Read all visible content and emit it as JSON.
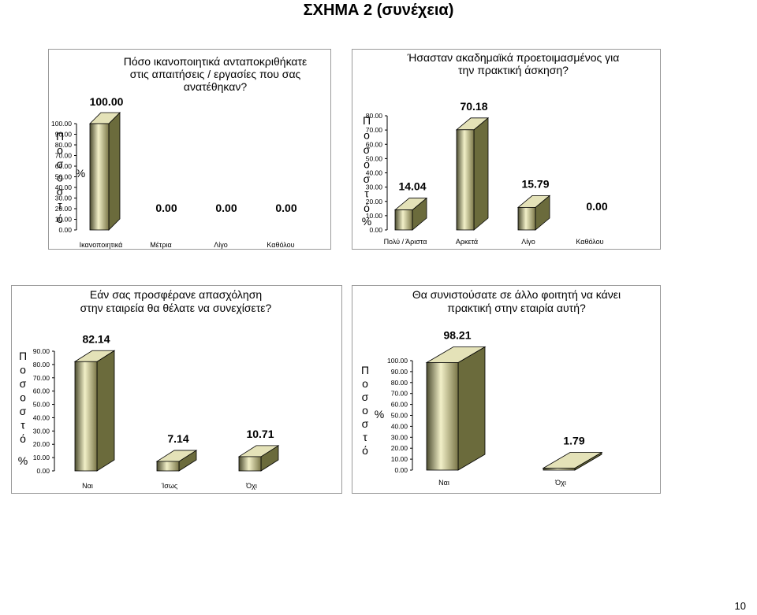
{
  "page_title": "ΣΧΗΜΑ 2 (συνέχεια)",
  "page_number": "10",
  "chart_data": [
    {
      "type": "bar",
      "title": "Πόσο ικανοποιητικά ανταποκριθήκατε στις απαιτήσεις / εργασίες που σας ανατέθηκαν?",
      "title_lines": [
        "Πόσο ικανοποιητικά ανταποκριθήκατε",
        "στις απαιτήσεις / εργασίες που σας",
        "ανατέθηκαν?"
      ],
      "ylabel": "Ποσοστό %",
      "ylabel_letters": [
        "Π",
        "ο",
        "σ",
        "ο",
        "σ",
        "τ",
        "ό"
      ],
      "ylabel_symbol": "%",
      "categories": [
        "Ικανοποιητικά",
        "Μέτρια",
        "Λίγο",
        "Καθόλου"
      ],
      "values": [
        100.0,
        0.0,
        0.0,
        0.0
      ],
      "value_labels": [
        "100.00",
        "0.00",
        "0.00",
        "0.00"
      ],
      "yticks": [
        "0.00",
        "10.00",
        "20.00",
        "30.00",
        "40.00",
        "50.00",
        "60.00",
        "70.00",
        "80.00",
        "90.00",
        "100.00"
      ],
      "ylim": [
        0,
        100
      ],
      "grid": false,
      "style": "3d-bar"
    },
    {
      "type": "bar",
      "title": "Ήσασταν ακαδημαϊκά προετοιμασμένος για την πρακτική άσκηση?",
      "title_lines": [
        "Ήσασταν ακαδημαϊκά προετοιμασμένος για",
        "την πρακτική άσκηση?"
      ],
      "ylabel": "Ποσοστό %",
      "ylabel_letters": [
        "Π",
        "ο",
        "σ",
        "ο",
        "σ",
        "τ",
        "ό"
      ],
      "ylabel_symbol": "%",
      "categories": [
        "Πολύ / Άριστα",
        "Αρκετά",
        "Λίγο",
        "Καθόλου"
      ],
      "values": [
        14.04,
        70.18,
        15.79,
        0.0
      ],
      "value_labels": [
        "14.04",
        "70.18",
        "15.79",
        "0.00"
      ],
      "yticks": [
        "0.00",
        "10.00",
        "20.00",
        "30.00",
        "40.00",
        "50.00",
        "60.00",
        "70.00",
        "80.00"
      ],
      "ylim": [
        0,
        80
      ],
      "grid": false,
      "style": "3d-bar"
    },
    {
      "type": "bar",
      "title": "Εάν σας προσφέρανε απασχόληση στην εταιρεία θα θέλατε να συνεχίσετε?",
      "title_lines": [
        "Εάν σας προσφέρανε απασχόληση",
        "στην εταιρεία θα θέλατε να συνεχίσετε?"
      ],
      "ylabel": "Ποσοστό %",
      "ylabel_letters": [
        "Π",
        "ο",
        "σ",
        "ο",
        "σ",
        "τ",
        "ό"
      ],
      "ylabel_symbol": "%",
      "categories": [
        "Ναι",
        "Ίσως",
        "Όχι"
      ],
      "values": [
        82.14,
        7.14,
        10.71
      ],
      "value_labels": [
        "82.14",
        "7.14",
        "10.71"
      ],
      "yticks": [
        "0.00",
        "10.00",
        "20.00",
        "30.00",
        "40.00",
        "50.00",
        "60.00",
        "70.00",
        "80.00",
        "90.00"
      ],
      "ylim": [
        0,
        90
      ],
      "grid": false,
      "style": "3d-bar"
    },
    {
      "type": "bar",
      "title": "Θα συνιστούσατε σε άλλο φοιτητή να κάνει πρακτική στην εταιρία αυτή?",
      "title_lines": [
        "Θα συνιστούσατε σε άλλο φοιτητή να κάνει",
        "πρακτική στην εταιρία αυτή?"
      ],
      "ylabel": "Ποσοστό %",
      "ylabel_letters": [
        "Π",
        "ο",
        "σ",
        "ο",
        "σ",
        "τ",
        "ό"
      ],
      "ylabel_symbol": "%",
      "categories": [
        "Ναι",
        "Όχι"
      ],
      "values": [
        98.21,
        1.79
      ],
      "value_labels": [
        "98.21",
        "1.79"
      ],
      "yticks": [
        "0.00",
        "10.00",
        "20.00",
        "30.00",
        "40.00",
        "50.00",
        "60.00",
        "70.00",
        "80.00",
        "90.00",
        "100.00"
      ],
      "ylim": [
        0,
        100
      ],
      "grid": false,
      "style": "3d-bar"
    }
  ]
}
